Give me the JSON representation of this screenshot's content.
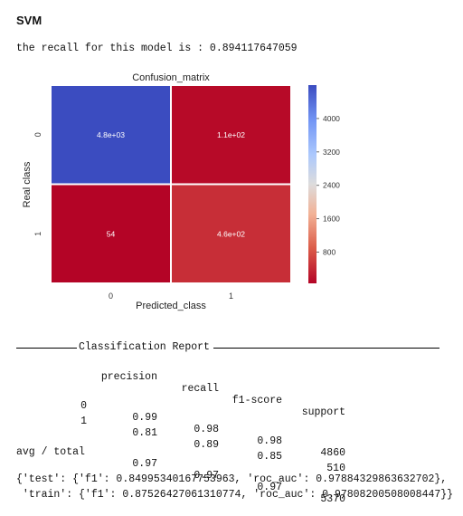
{
  "heading": "SVM",
  "recall_text": "the recall for this model is : 0.894117647059",
  "chart_data": {
    "type": "heatmap",
    "title": "Confusion_matrix",
    "xlabel": "Predicted_class",
    "ylabel": "Real class",
    "x_tick_labels": [
      "0",
      "1"
    ],
    "y_tick_labels": [
      "0",
      "1"
    ],
    "values": [
      [
        4800,
        110
      ],
      [
        54,
        460
      ]
    ],
    "annotations": [
      [
        "4.8e+03",
        "1.1e+02"
      ],
      [
        "54",
        "4.6e+02"
      ]
    ],
    "colorbar": {
      "ticks": [
        "4000",
        "3200",
        "2400",
        "1600",
        "800"
      ],
      "tick_values": [
        4000,
        3200,
        2400,
        1600,
        800
      ],
      "range": [
        54,
        4800
      ],
      "colormap": "coolwarm_r"
    },
    "colors": {
      "low": "#b40426",
      "mid": "#dddcdc",
      "high": "#3b4cc0"
    }
  },
  "report": {
    "title": "Classification Report",
    "headers": [
      "precision",
      "recall",
      "f1-score",
      "support"
    ],
    "rows": [
      {
        "label": "0",
        "values": [
          "0.99",
          "0.98",
          "0.98",
          "4860"
        ]
      },
      {
        "label": "1",
        "values": [
          "0.81",
          "0.89",
          "0.85",
          "510"
        ]
      }
    ],
    "avg": {
      "label": "avg / total",
      "values": [
        "0.97",
        "0.97",
        "0.97",
        "5370"
      ]
    }
  },
  "dict_lines": [
    "{'test': {'f1': 0.84995340167753963, 'roc_auc': 0.97884329863632702},",
    " 'train': {'f1': 0.87526427061310774, 'roc_auc': 0.97808200508008447}}"
  ]
}
